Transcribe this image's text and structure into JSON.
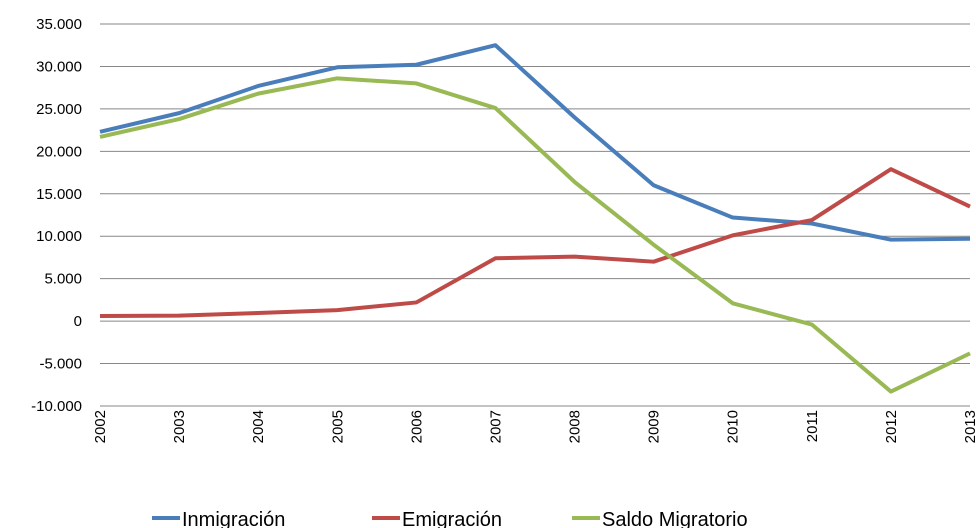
{
  "chart_data": {
    "type": "line",
    "categories": [
      "2002",
      "2003",
      "2004",
      "2005",
      "2006",
      "2007",
      "2008",
      "2009",
      "2010",
      "2011",
      "2012",
      "2013"
    ],
    "series": [
      {
        "name": "Inmigración",
        "color": "#4a7ebb",
        "values": [
          22300,
          24500,
          27700,
          29900,
          30200,
          32500,
          24000,
          16000,
          12200,
          11500,
          9600,
          9700
        ]
      },
      {
        "name": "Emigración",
        "color": "#be4b48",
        "values": [
          600,
          650,
          950,
          1300,
          2200,
          7400,
          7600,
          7000,
          10100,
          11900,
          17900,
          13500
        ]
      },
      {
        "name": "Saldo Migratorio",
        "color": "#98b954",
        "values": [
          21700,
          23800,
          26800,
          28600,
          28000,
          25100,
          16400,
          9000,
          2100,
          -400,
          -8300,
          -3800
        ]
      }
    ],
    "ylim": [
      -10000,
      35000
    ],
    "yticks": [
      {
        "value": -10000,
        "label": "-10.000"
      },
      {
        "value": -5000,
        "label": "-5.000"
      },
      0,
      {
        "value": 5000,
        "label": "5.000"
      },
      {
        "value": 10000,
        "label": "10.000"
      },
      {
        "value": 15000,
        "label": "15.000"
      },
      {
        "value": 20000,
        "label": "20.000"
      },
      {
        "value": 25000,
        "label": "25.000"
      },
      {
        "value": 30000,
        "label": "30.000"
      },
      {
        "value": 35000,
        "label": "35.000"
      }
    ],
    "grid": true,
    "legend": "bottom"
  }
}
